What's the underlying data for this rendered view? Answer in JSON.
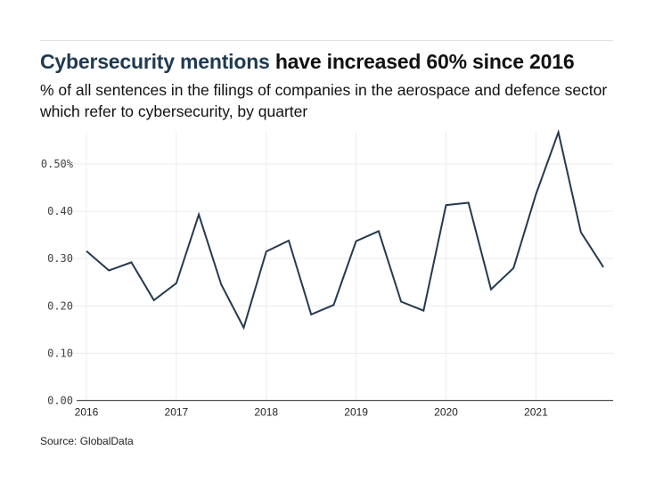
{
  "header": {
    "title_highlight": "Cybersecurity mentions",
    "title_rest": " have increased 60% since 2016",
    "subtitle": "% of all sentences in the filings of companies in the aerospace and defence sector which refer to cybersecurity, by quarter"
  },
  "footer": {
    "source": "Source: GlobalData"
  },
  "colors": {
    "line": "#253a4f",
    "title_highlight": "#1f3a52",
    "grid": "#ececec",
    "axis": "#555555"
  },
  "chart_data": {
    "type": "line",
    "title": "Cybersecurity mentions have increased 60% since 2016",
    "subtitle": "% of all sentences in the filings of companies in the aerospace and defence sector which refer to cybersecurity, by quarter",
    "xlabel": "",
    "ylabel": "",
    "x": [
      "2016 Q1",
      "2016 Q2",
      "2016 Q3",
      "2016 Q4",
      "2017 Q1",
      "2017 Q2",
      "2017 Q3",
      "2017 Q4",
      "2018 Q1",
      "2018 Q2",
      "2018 Q3",
      "2018 Q4",
      "2019 Q1",
      "2019 Q2",
      "2019 Q3",
      "2019 Q4",
      "2020 Q1",
      "2020 Q2",
      "2020 Q3",
      "2020 Q4",
      "2021 Q1",
      "2021 Q2",
      "2021 Q3",
      "2021 Q4"
    ],
    "series": [
      {
        "name": "Cybersecurity mentions (%)",
        "values": [
          0.316,
          0.275,
          0.292,
          0.212,
          0.248,
          0.393,
          0.245,
          0.154,
          0.315,
          0.338,
          0.182,
          0.202,
          0.337,
          0.358,
          0.209,
          0.19,
          0.413,
          0.418,
          0.235,
          0.28,
          0.436,
          0.567,
          0.356,
          0.282
        ]
      }
    ],
    "xticks": [
      "2016",
      "2017",
      "2018",
      "2019",
      "2020",
      "2021"
    ],
    "yticks": [
      "0.00",
      "0.10",
      "0.20",
      "0.30",
      "0.40",
      "0.50%"
    ],
    "ytick_values": [
      0,
      0.1,
      0.2,
      0.3,
      0.4,
      0.5
    ],
    "ylim": [
      0,
      0.57
    ],
    "xlim_quarters": [
      0,
      23
    ],
    "grid": true,
    "legend": "none"
  }
}
